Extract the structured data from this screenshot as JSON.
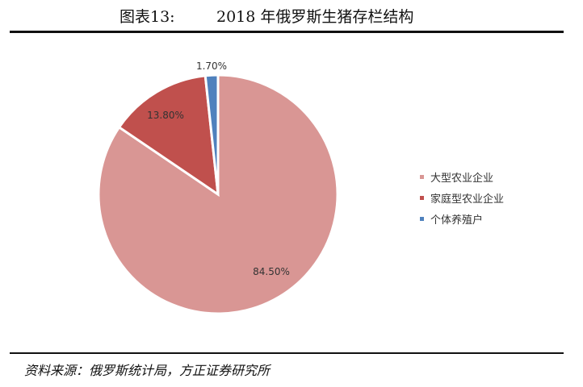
{
  "header": {
    "figure_label": "图表13:",
    "title": "2018 年俄罗斯生猪存栏结构"
  },
  "chart_data": {
    "type": "pie",
    "title": "",
    "slices": [
      {
        "label": "大型农业企业",
        "value": 84.5,
        "display": "84.50%",
        "color": "#d99694"
      },
      {
        "label": "家庭型农业企业",
        "value": 13.8,
        "display": "13.80%",
        "color": "#c0504d"
      },
      {
        "label": "个体养殖户",
        "value": 1.7,
        "display": "1.70%",
        "color": "#4f81bd"
      }
    ],
    "legend_position": "right"
  },
  "footer": {
    "source": "资料来源：俄罗斯统计局，方正证券研究所"
  }
}
